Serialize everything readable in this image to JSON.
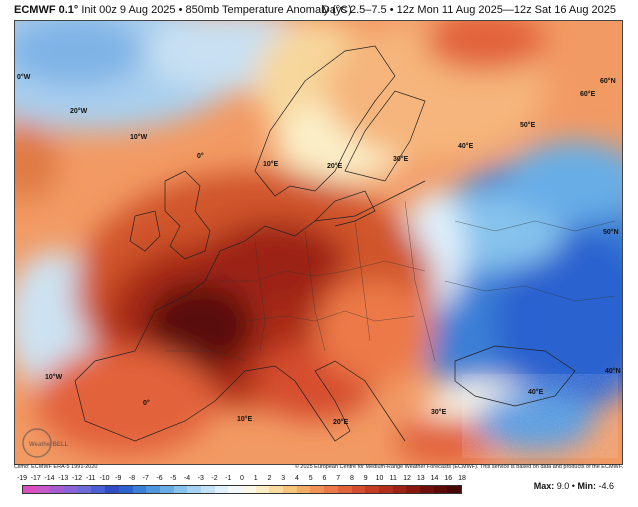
{
  "header": {
    "model": "ECMWF 0.1°",
    "init": "Init 00z 9 Aug 2025",
    "separator": "•",
    "product": "850mb Temperature Anomaly (°C)",
    "period": "Days 2.5–7.5 • 12z Mon 11 Aug 2025—12z Sat 16 Aug 2025"
  },
  "map": {
    "region": "Europe",
    "lat_labels": [
      "60°N",
      "50°N",
      "40°N"
    ],
    "lon_labels": [
      "20°W",
      "10°W",
      "0°",
      "0°W",
      "10°E",
      "20°E",
      "30°E",
      "40°E",
      "50°E",
      "60°E"
    ],
    "colors": {
      "hot_max": "#4a0a05",
      "hot": "#c2401c",
      "warm": "#ef8a55",
      "mild": "#f8d494",
      "neutral": "#fbf6e4",
      "cool": "#a9cfee",
      "cold": "#3b7fd6",
      "cold_deep": "#1e4fb0"
    },
    "watermark": "WeatherBELL"
  },
  "footer": {
    "climo": "Climo: ECMWF ERA-5 1991-2020",
    "copyright": "© 2025 European Centre for Medium-Range Weather Forecasts (ECMWF). This service is based on data and products of the ECMWF."
  },
  "scale": {
    "labels": [
      "-19",
      "-17",
      "-14",
      "-13",
      "-12",
      "-11",
      "-10",
      "-9",
      "-8",
      "-7",
      "-6",
      "-5",
      "-4",
      "-3",
      "-2",
      "-1",
      "0",
      "1",
      "2",
      "3",
      "4",
      "5",
      "6",
      "7",
      "8",
      "9",
      "10",
      "11",
      "12",
      "13",
      "14",
      "16",
      "18"
    ],
    "colors": [
      "#d94fc2",
      "#c659c9",
      "#a75bd0",
      "#8a63d8",
      "#6a6ad8",
      "#4a5ed6",
      "#2d4cc6",
      "#2a62cf",
      "#3a7ed8",
      "#4f96df",
      "#68ade6",
      "#86c2ec",
      "#a6d3f1",
      "#c4e2f6",
      "#dff0fa",
      "#f3f8fb",
      "#fbf7e6",
      "#fbecc2",
      "#f9db9c",
      "#f7c47b",
      "#f4ab65",
      "#f19154",
      "#ec7947",
      "#e2623a",
      "#d54d2f",
      "#c53c24",
      "#b22e1b",
      "#9d2214",
      "#87180e",
      "#70100a",
      "#5a0a07",
      "#460605"
    ]
  },
  "stats": {
    "max_label": "Max:",
    "max_value": "9.0",
    "sep": "•",
    "min_label": "Min:",
    "min_value": "-4.6"
  }
}
